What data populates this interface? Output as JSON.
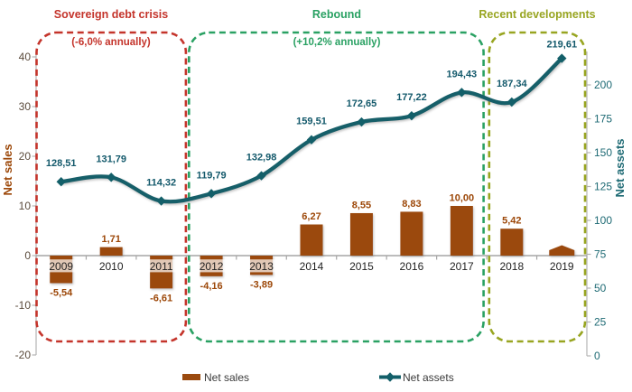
{
  "chart_data": {
    "type": "combo-bar-line",
    "categories": [
      "2009",
      "2010",
      "2011",
      "2012",
      "2013",
      "2014",
      "2015",
      "2016",
      "2017",
      "2018",
      "2019"
    ],
    "series": [
      {
        "name": "Net sales",
        "chart": "bar",
        "axis": "left",
        "color": "#9B4A0F",
        "label_color": "#9C4708",
        "values": [
          -5.54,
          1.71,
          -6.61,
          -4.16,
          -3.89,
          6.27,
          8.55,
          8.83,
          10.0,
          5.42,
          2.0
        ],
        "labels": [
          "-5,54",
          "1,71",
          "-6,61",
          "-4,16",
          "-3,89",
          "6,27",
          "8,55",
          "8,83",
          "10,00",
          "5,42",
          ""
        ],
        "last_bar_shape": "pentagon"
      },
      {
        "name": "Net assets",
        "chart": "line",
        "axis": "right",
        "color": "#135F69",
        "label_color": "#13596B",
        "values": [
          128.51,
          131.79,
          114.32,
          119.79,
          132.98,
          159.51,
          172.65,
          177.22,
          194.43,
          187.34,
          219.61
        ],
        "labels": [
          "128,51",
          "131,79",
          "114,32",
          "119,79",
          "132,98",
          "159,51",
          "172,65",
          "177,22",
          "194,43",
          "187,34",
          "219,61"
        ]
      }
    ],
    "left_axis": {
      "title": "Net sales",
      "ticks": [
        "40",
        "30",
        "20",
        "10",
        "0",
        "-10",
        "-20"
      ],
      "tick_values": [
        40,
        30,
        20,
        10,
        0,
        -10,
        -20
      ],
      "range": [
        -20,
        40
      ],
      "title_color": "#9C4708",
      "tick_color": "#5A4A3B"
    },
    "right_axis": {
      "title": "Net assets",
      "ticks": [
        "200",
        "175",
        "150",
        "125",
        "100",
        "75",
        "50",
        "25",
        "0"
      ],
      "tick_values": [
        200,
        175,
        150,
        125,
        100,
        75,
        50,
        25,
        0
      ],
      "range": [
        0,
        225
      ],
      "title_color": "#1E6A74",
      "tick_color": "#1E6A74"
    },
    "annotations": [
      {
        "label": "Sovereign debt crisis",
        "sublabel": "(-6,0% annually)",
        "color": "#C4342B",
        "span": [
          0,
          2
        ]
      },
      {
        "label": "Rebound",
        "sublabel": "(+10,2% annually)",
        "color": "#2AA163",
        "span": [
          3,
          8
        ]
      },
      {
        "label": "Recent developments",
        "sublabel": "",
        "color": "#98A521",
        "span": [
          9,
          10
        ]
      }
    ],
    "legend": [
      {
        "label": "Net sales",
        "marker": "bar-swatch"
      },
      {
        "label": "Net assets",
        "marker": "line-diamond"
      }
    ],
    "grid": false,
    "legend_position": "bottom"
  }
}
